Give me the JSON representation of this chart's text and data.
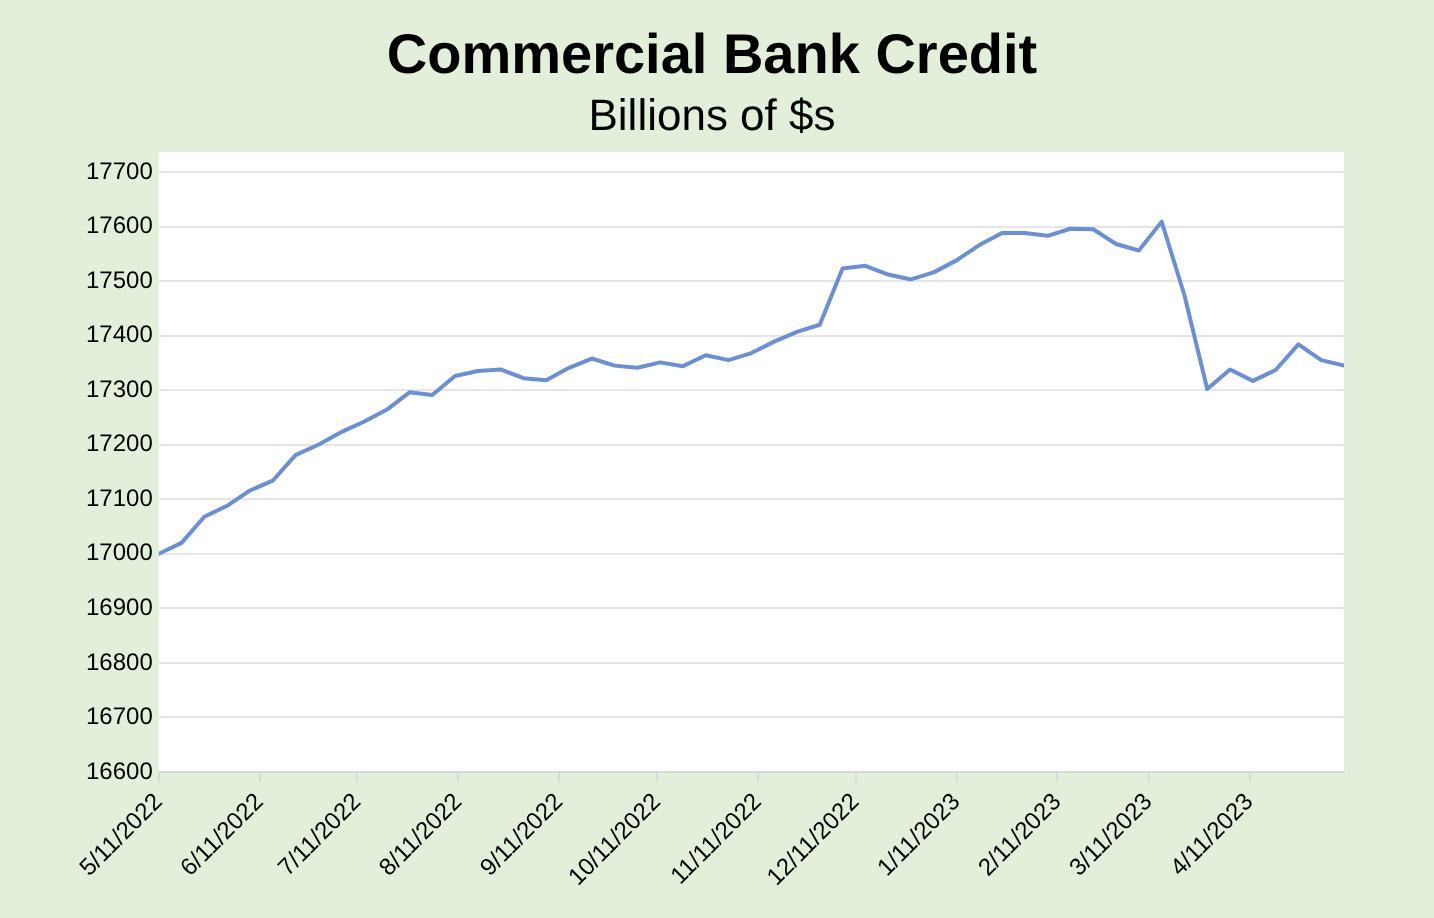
{
  "chart_data": {
    "type": "line",
    "title": "Commercial Bank Credit",
    "subtitle": "Billions of $s",
    "x": [
      "2022-05-11",
      "2022-05-18",
      "2022-05-25",
      "2022-06-01",
      "2022-06-08",
      "2022-06-15",
      "2022-06-22",
      "2022-06-29",
      "2022-07-06",
      "2022-07-13",
      "2022-07-20",
      "2022-07-27",
      "2022-08-03",
      "2022-08-10",
      "2022-08-17",
      "2022-08-24",
      "2022-08-31",
      "2022-09-07",
      "2022-09-14",
      "2022-09-21",
      "2022-09-28",
      "2022-10-05",
      "2022-10-12",
      "2022-10-19",
      "2022-10-26",
      "2022-11-02",
      "2022-11-09",
      "2022-11-16",
      "2022-11-23",
      "2022-11-30",
      "2022-12-07",
      "2022-12-14",
      "2022-12-21",
      "2022-12-28",
      "2023-01-04",
      "2023-01-11",
      "2023-01-18",
      "2023-01-25",
      "2023-02-01",
      "2023-02-08",
      "2023-02-15",
      "2023-02-22",
      "2023-03-01",
      "2023-03-08",
      "2023-03-15",
      "2023-03-22",
      "2023-03-29",
      "2023-04-05",
      "2023-04-12",
      "2023-04-19",
      "2023-04-26",
      "2023-05-03",
      "2023-05-10"
    ],
    "series": [
      {
        "color": "#6b8fd0",
        "values": [
          17000,
          17020,
          17068,
          17088,
          17116,
          17134,
          17181,
          17200,
          17223,
          17242,
          17264,
          17296,
          17291,
          17326,
          17335,
          17338,
          17322,
          17318,
          17341,
          17358,
          17345,
          17341,
          17351,
          17344,
          17364,
          17355,
          17368,
          17389,
          17407,
          17420,
          17523,
          17528,
          17512,
          17503,
          17516,
          17538,
          17566,
          17588,
          17588,
          17583,
          17596,
          17595,
          17568,
          17556,
          17609,
          17474,
          17302,
          17338,
          17317,
          17337,
          17384,
          17355,
          17345
        ]
      }
    ],
    "xlim": [
      "2022-05-11",
      "2023-05-10"
    ],
    "xticks": [
      {
        "value": "2022-05-11",
        "label": "5/11/2022"
      },
      {
        "value": "2022-06-11",
        "label": "6/11/2022"
      },
      {
        "value": "2022-07-11",
        "label": "7/11/2022"
      },
      {
        "value": "2022-08-11",
        "label": "8/11/2022"
      },
      {
        "value": "2022-09-11",
        "label": "9/11/2022"
      },
      {
        "value": "2022-10-11",
        "label": "10/11/2022"
      },
      {
        "value": "2022-11-11",
        "label": "11/11/2022"
      },
      {
        "value": "2022-12-11",
        "label": "12/11/2022"
      },
      {
        "value": "2023-01-11",
        "label": "1/11/2023"
      },
      {
        "value": "2023-02-11",
        "label": "2/11/2023"
      },
      {
        "value": "2023-03-11",
        "label": "3/11/2023"
      },
      {
        "value": "2023-04-11",
        "label": "4/11/2023"
      }
    ],
    "ylim": [
      16600,
      17700
    ],
    "yticks": [
      16600,
      16700,
      16800,
      16900,
      17000,
      17100,
      17200,
      17300,
      17400,
      17500,
      17600,
      17700
    ],
    "grid": "y",
    "legend": false,
    "marker": "none",
    "line_style": "solid"
  }
}
